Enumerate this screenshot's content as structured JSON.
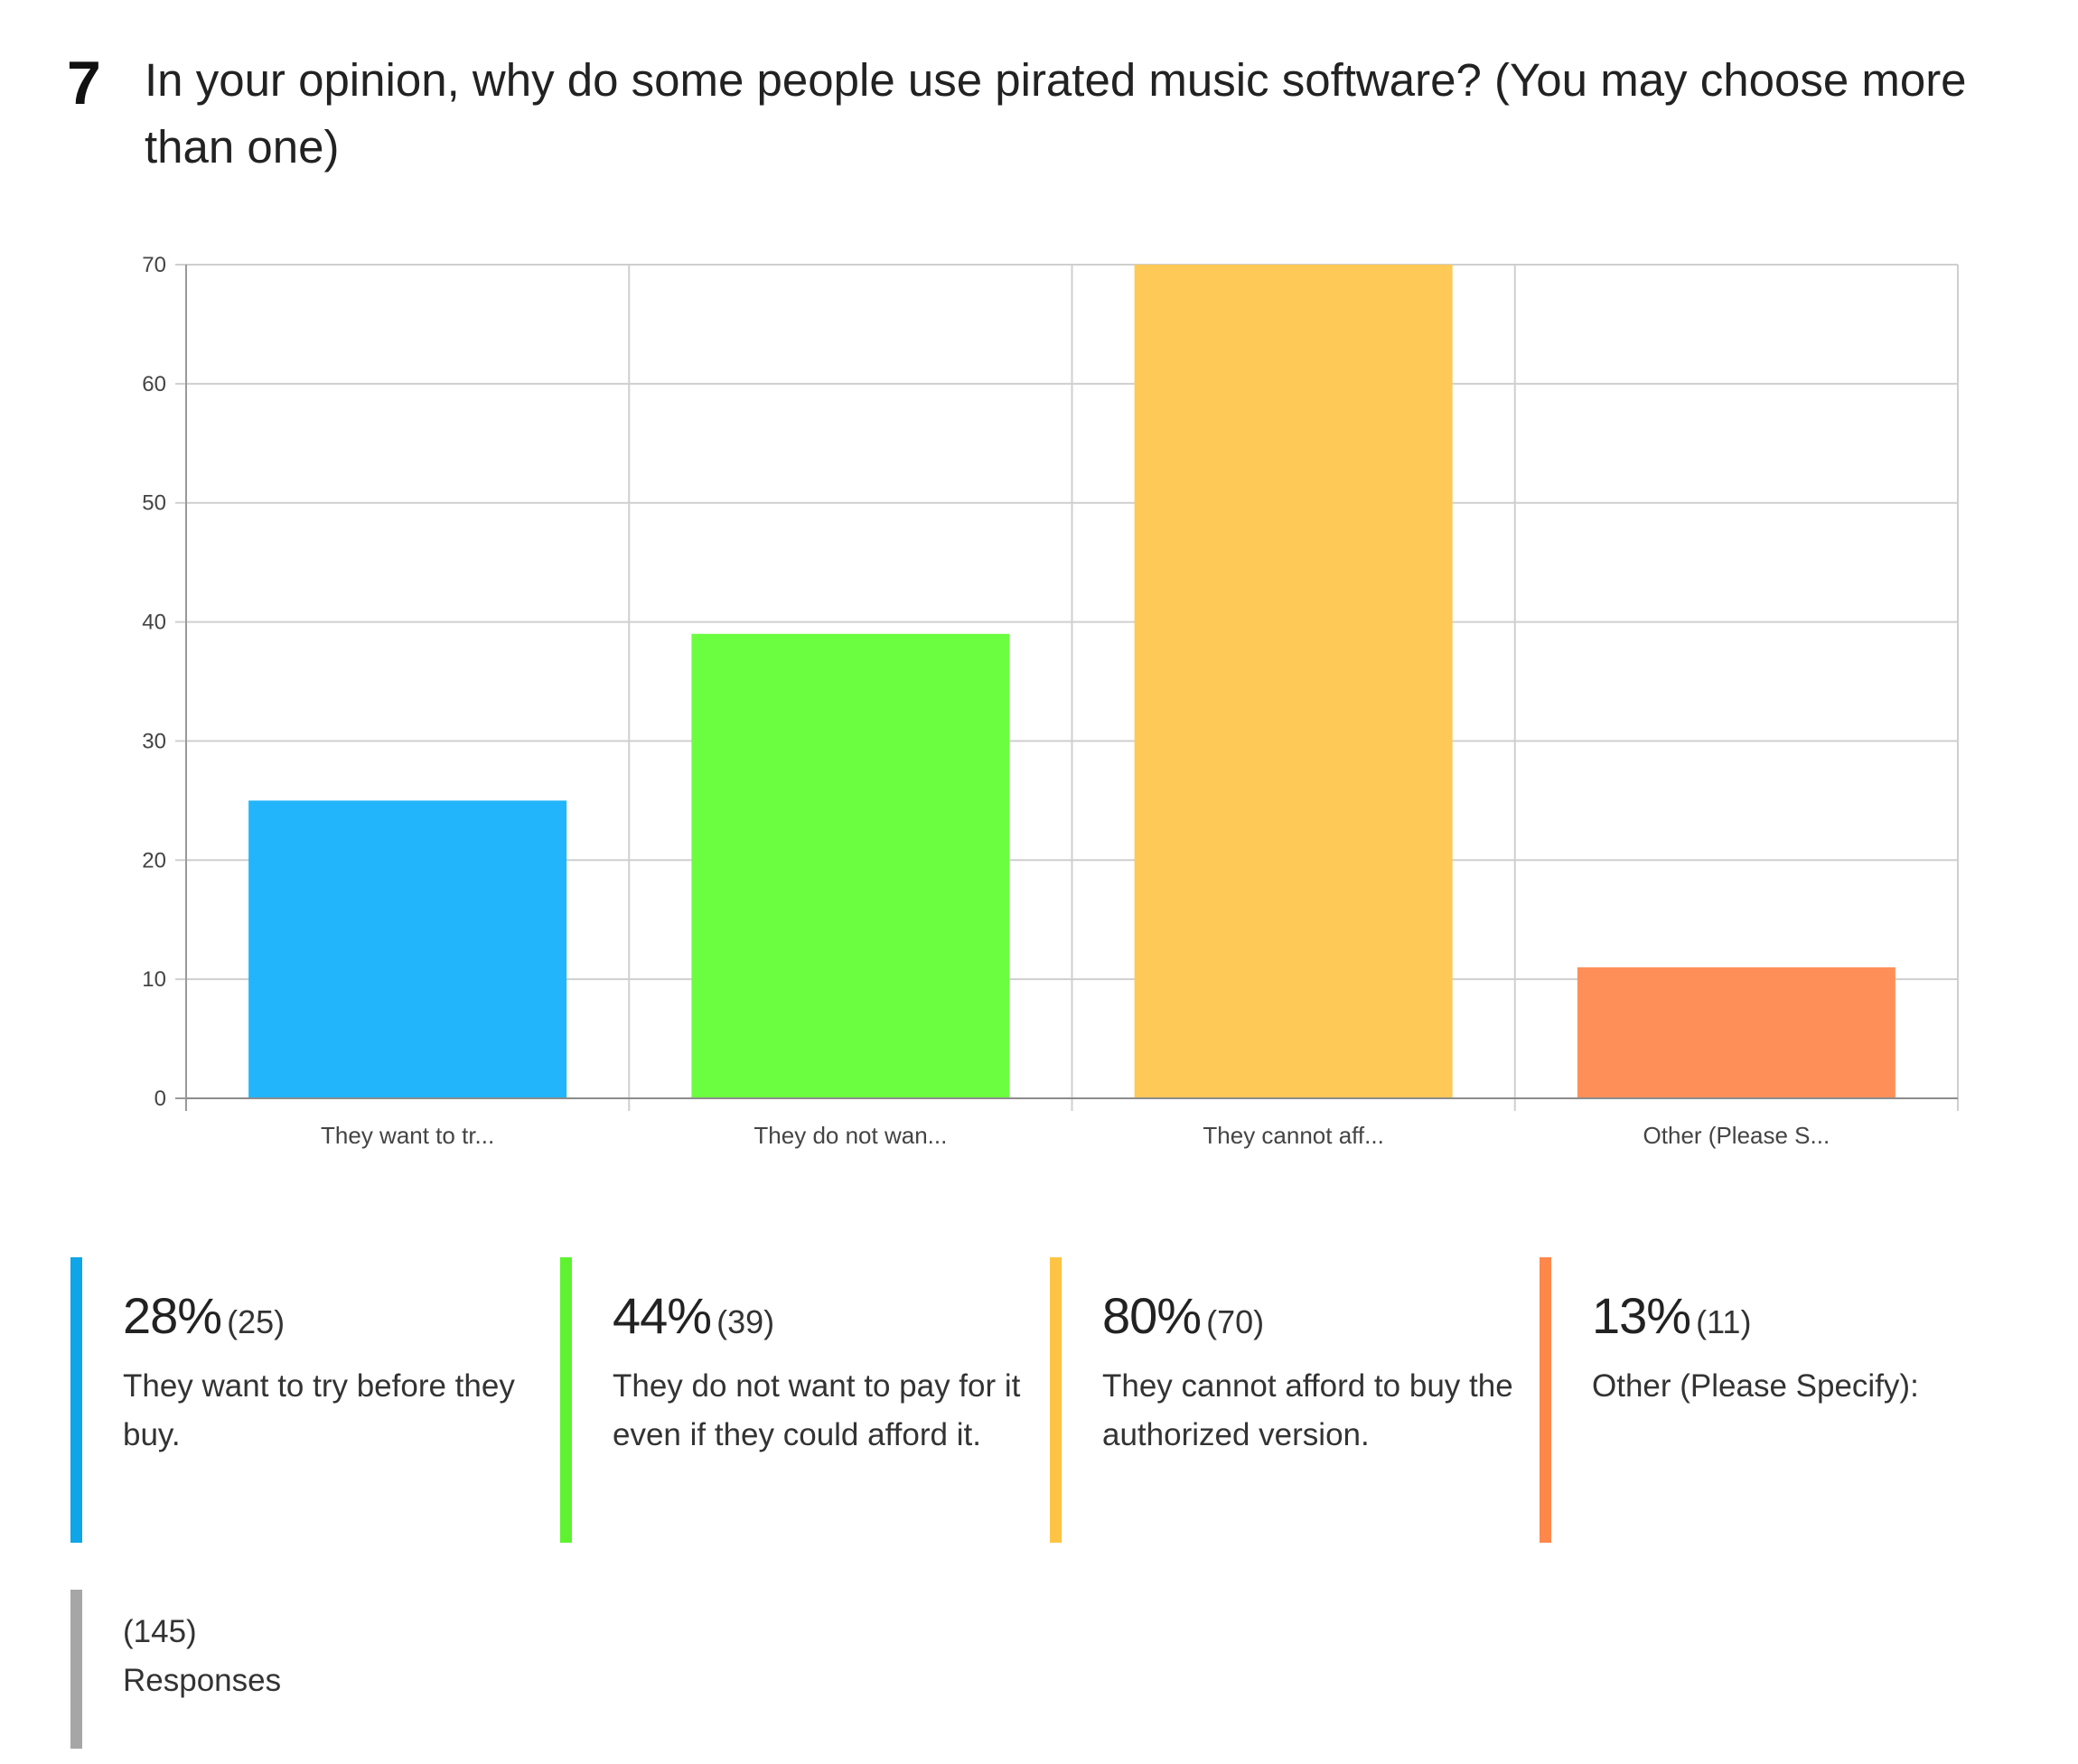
{
  "question": {
    "number": "7",
    "title": "In your opinion, why do some people use pirated music software? (You may choose more than one)"
  },
  "chart_data": {
    "type": "bar",
    "categories": [
      "They want to tr...",
      "They do not wan...",
      "They cannot aff...",
      "Other (Please S..."
    ],
    "values": [
      25,
      39,
      70,
      11
    ],
    "ylim": [
      0,
      70
    ],
    "yticks": [
      0,
      10,
      20,
      30,
      40,
      50,
      60,
      70
    ],
    "grid": true,
    "colors": [
      "#22b5fb",
      "#6bfe40",
      "#ffc957",
      "#ff8f58"
    ]
  },
  "legend": [
    {
      "pct": "28%",
      "count": "(25)",
      "label": "They want to try before they buy.",
      "color": "#0ea5e9"
    },
    {
      "pct": "44%",
      "count": "(39)",
      "label": "They do not want to pay for it even if they could afford it.",
      "color": "#5ef231"
    },
    {
      "pct": "80%",
      "count": "(70)",
      "label": "They cannot afford to buy the authorized version.",
      "color": "#ffc444"
    },
    {
      "pct": "13%",
      "count": "(11)",
      "label": "Other (Please Specify):",
      "color": "#ff874a"
    }
  ],
  "summary": {
    "count": "(145)",
    "label": "Responses"
  }
}
